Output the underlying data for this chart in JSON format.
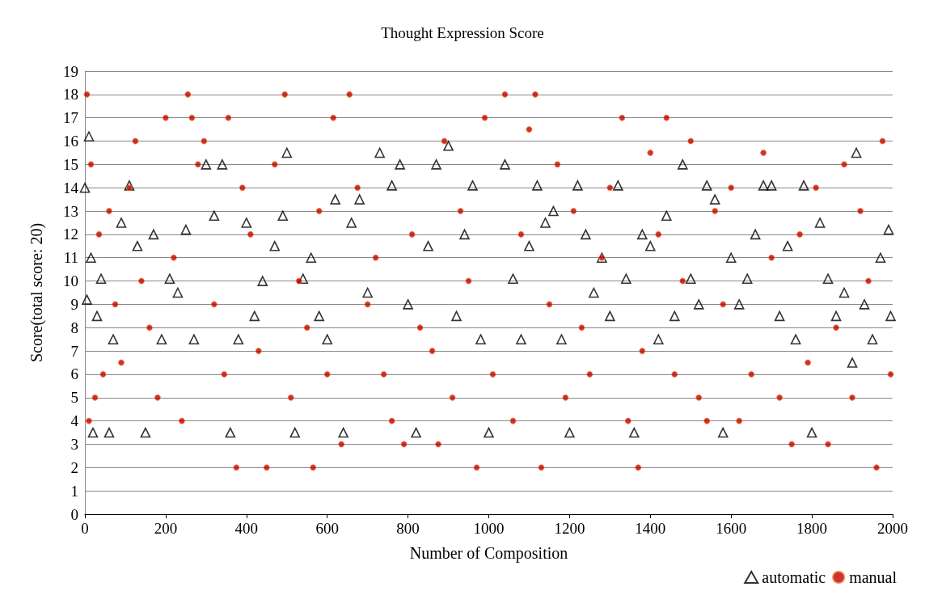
{
  "chart_data": {
    "type": "scatter",
    "title": "Thought Expression Score",
    "xlabel": "Number of Composition",
    "ylabel": "Score(total score: 20)",
    "xlim": [
      0,
      2000
    ],
    "xticks": [
      0,
      200,
      400,
      600,
      800,
      1000,
      1200,
      1400,
      1600,
      1800,
      2000
    ],
    "ylim": [
      0,
      19
    ],
    "yticks": [
      0,
      1,
      2,
      3,
      4,
      5,
      6,
      7,
      8,
      9,
      10,
      11,
      12,
      13,
      14,
      15,
      16,
      17,
      18,
      19
    ],
    "grid": "y",
    "legend": "bottom right",
    "series": [
      {
        "name": "automatic",
        "color": "#000000",
        "marker": "triangle",
        "x": [
          0,
          5,
          10,
          15,
          20,
          30,
          40,
          60,
          70,
          90,
          110,
          130,
          150,
          170,
          190,
          210,
          230,
          250,
          270,
          300,
          320,
          340,
          360,
          380,
          400,
          420,
          440,
          470,
          490,
          500,
          520,
          540,
          560,
          580,
          600,
          620,
          640,
          660,
          680,
          700,
          730,
          760,
          780,
          800,
          820,
          850,
          870,
          900,
          920,
          940,
          960,
          980,
          1000,
          1040,
          1060,
          1080,
          1100,
          1120,
          1140,
          1160,
          1180,
          1200,
          1220,
          1240,
          1260,
          1280,
          1300,
          1320,
          1340,
          1360,
          1380,
          1400,
          1420,
          1440,
          1460,
          1480,
          1500,
          1520,
          1540,
          1560,
          1580,
          1600,
          1620,
          1640,
          1660,
          1680,
          1700,
          1720,
          1740,
          1760,
          1780,
          1800,
          1820,
          1840,
          1860,
          1880,
          1900,
          1910,
          1930,
          1950,
          1970,
          1990,
          1995
        ],
        "values": [
          14,
          9.2,
          16.2,
          11,
          3.5,
          8.5,
          10.1,
          3.5,
          7.5,
          12.5,
          14.1,
          11.5,
          3.5,
          12,
          7.5,
          10.1,
          9.5,
          12.2,
          7.5,
          15,
          12.8,
          15,
          3.5,
          7.5,
          12.5,
          8.5,
          10,
          11.5,
          12.8,
          15.5,
          3.5,
          10.1,
          11,
          8.5,
          7.5,
          13.5,
          3.5,
          12.5,
          13.5,
          9.5,
          15.5,
          14.1,
          15,
          9,
          3.5,
          11.5,
          15,
          15.8,
          8.5,
          12,
          14.1,
          7.5,
          3.5,
          15,
          10.1,
          7.5,
          11.5,
          14.1,
          12.5,
          13,
          7.5,
          3.5,
          14.1,
          12,
          9.5,
          11,
          8.5,
          14.1,
          10.1,
          3.5,
          12,
          11.5,
          7.5,
          12.8,
          8.5,
          15,
          10.1,
          9,
          14.1,
          13.5,
          3.5,
          11,
          9,
          10.1,
          12,
          14.1,
          14.1,
          8.5,
          11.5,
          7.5,
          14.1,
          3.5,
          12.5,
          10.1,
          8.5,
          9.5,
          6.5,
          15.5,
          9,
          7.5,
          11,
          12.2,
          8.5
        ]
      },
      {
        "name": "manual",
        "color": "#c00000",
        "marker": "circle",
        "x": [
          5,
          10,
          15,
          25,
          35,
          45,
          60,
          75,
          90,
          110,
          125,
          140,
          160,
          180,
          200,
          220,
          240,
          255,
          265,
          280,
          295,
          320,
          345,
          355,
          375,
          390,
          410,
          430,
          450,
          470,
          495,
          510,
          530,
          550,
          565,
          580,
          600,
          615,
          635,
          655,
          675,
          700,
          720,
          740,
          760,
          790,
          810,
          830,
          860,
          875,
          890,
          910,
          930,
          950,
          970,
          990,
          1010,
          1040,
          1060,
          1080,
          1100,
          1115,
          1130,
          1150,
          1170,
          1190,
          1210,
          1230,
          1250,
          1280,
          1300,
          1330,
          1345,
          1370,
          1380,
          1400,
          1420,
          1440,
          1460,
          1480,
          1500,
          1520,
          1540,
          1560,
          1580,
          1600,
          1620,
          1650,
          1680,
          1700,
          1720,
          1750,
          1770,
          1790,
          1810,
          1840,
          1860,
          1880,
          1900,
          1920,
          1940,
          1960,
          1975,
          1995
        ],
        "values": [
          18,
          4,
          15,
          5,
          12,
          6,
          13,
          9,
          6.5,
          14,
          16,
          10,
          8,
          5,
          17,
          11,
          4,
          18,
          17,
          15,
          16,
          9,
          6,
          17,
          2,
          14,
          12,
          7,
          2,
          15,
          18,
          5,
          10,
          8,
          2,
          13,
          6,
          17,
          3,
          18,
          14,
          9,
          11,
          6,
          4,
          3,
          12,
          8,
          7,
          3,
          16,
          5,
          13,
          10,
          2,
          17,
          6,
          18,
          4,
          12,
          16.5,
          18,
          2,
          9,
          15,
          5,
          13,
          8,
          6,
          11,
          14,
          17,
          4,
          2,
          7,
          15.5,
          12,
          17,
          6,
          10,
          16,
          5,
          4,
          13,
          9,
          14,
          4,
          6,
          15.5,
          11,
          5,
          3,
          12,
          6.5,
          14,
          3,
          8,
          15,
          5,
          13,
          10,
          2,
          16,
          6
        ]
      }
    ]
  }
}
